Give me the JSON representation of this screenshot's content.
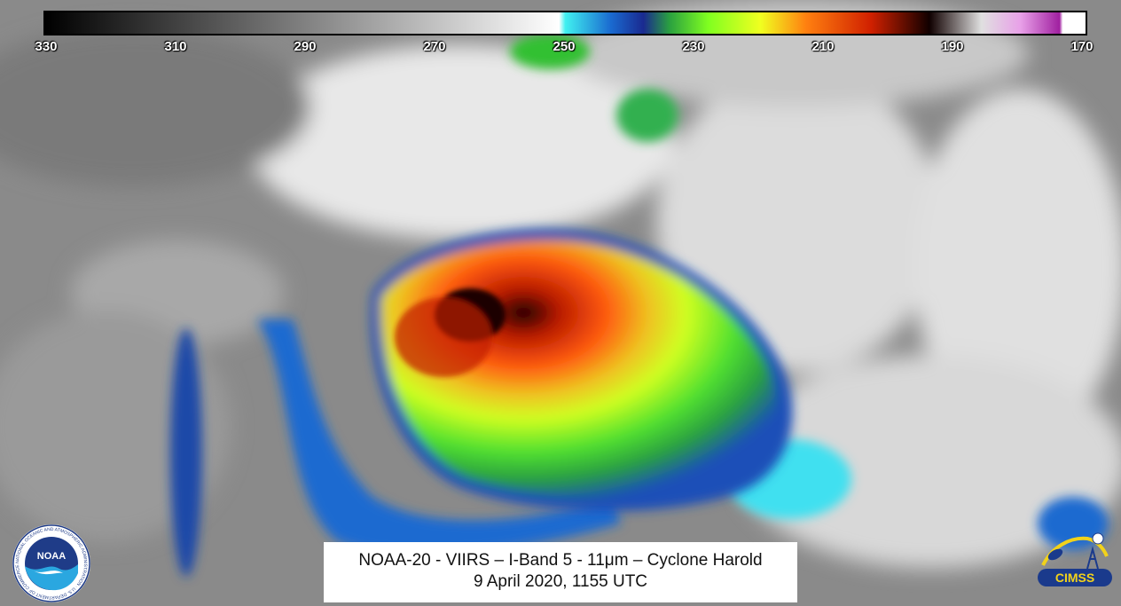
{
  "colorbar": {
    "ticks": [
      "330",
      "310",
      "290",
      "270",
      "250",
      "230",
      "210",
      "190",
      "170"
    ],
    "tick_values": [
      330,
      310,
      290,
      270,
      250,
      230,
      210,
      190,
      170
    ],
    "range": [
      330,
      170
    ],
    "stops": [
      {
        "value": 330,
        "color": "#000000"
      },
      {
        "value": 251,
        "color": "#ffffff"
      },
      {
        "value": 250,
        "color": "#40f0f0"
      },
      {
        "value": 243,
        "color": "#1a6ad0"
      },
      {
        "value": 238,
        "color": "#1a2a90"
      },
      {
        "value": 234,
        "color": "#2aa040"
      },
      {
        "value": 228,
        "color": "#80ff20"
      },
      {
        "value": 220,
        "color": "#f0ff20"
      },
      {
        "value": 213,
        "color": "#ff8010"
      },
      {
        "value": 203,
        "color": "#d02000"
      },
      {
        "value": 194,
        "color": "#100000"
      },
      {
        "value": 186,
        "color": "#e0e0e0"
      },
      {
        "value": 180,
        "color": "#e8a0e8"
      },
      {
        "value": 174,
        "color": "#a020a0"
      },
      {
        "value": 173.5,
        "color": "#ffffff"
      },
      {
        "value": 170,
        "color": "#ffffff"
      }
    ]
  },
  "caption": {
    "line1": "NOAA-20 - VIIRS – I-Band 5 - 11μm – Cyclone Harold",
    "line2": "9 April 2020, 1155 UTC"
  },
  "logos": {
    "noaa": {
      "text": "NOAA",
      "ring_text": "NATIONAL OCEANIC AND ATMOSPHERIC ADMINISTRATION · U.S. DEPARTMENT OF COMMERCE"
    },
    "cimss": {
      "text": "CIMSS"
    }
  },
  "colors": {
    "noaa_navy": "#1f3c88",
    "noaa_light": "#2aa7e0",
    "cimss_blue": "#1a3a8c",
    "cimss_yellow": "#f2d21a"
  }
}
